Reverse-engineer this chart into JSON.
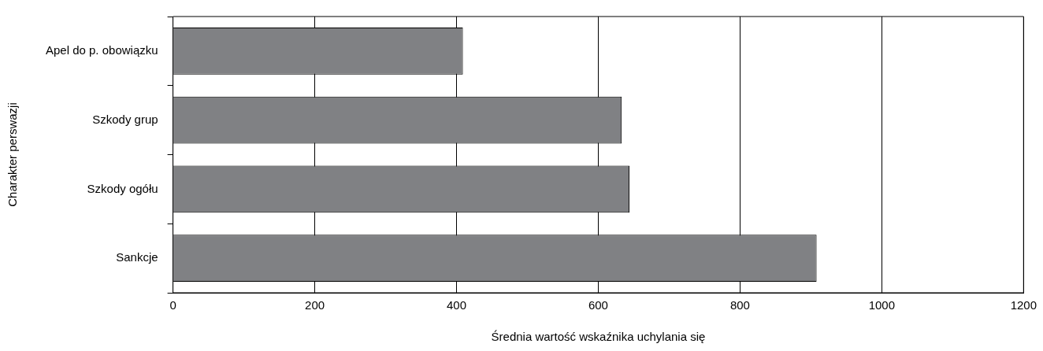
{
  "chart_data": {
    "type": "bar",
    "orientation": "horizontal",
    "xlabel": "Średnia wartość wskaźnika uchylania się",
    "ylabel": "Charakter perswazji",
    "categories": [
      "Apel do p. obowiązku",
      "Szkody grup",
      "Szkody ogółu",
      "Sankcje"
    ],
    "values": [
      409,
      633,
      644,
      908
    ],
    "color": "#808184",
    "xlim": [
      0,
      1200
    ],
    "xticks": [
      0,
      200,
      400,
      600,
      800,
      1000,
      1200
    ],
    "grid": "x",
    "legend": false
  }
}
